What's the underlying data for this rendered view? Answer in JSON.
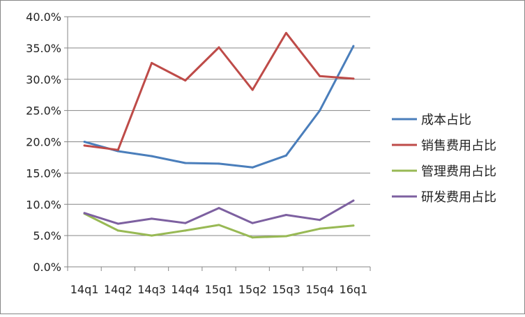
{
  "chart_data": {
    "type": "line",
    "title": "",
    "xlabel": "",
    "ylabel": "",
    "categories": [
      "14q1",
      "14q2",
      "14q3",
      "14q4",
      "15q1",
      "15q2",
      "15q3",
      "15q4",
      "16q1"
    ],
    "ylim": [
      0,
      40
    ],
    "yticks": [
      0,
      5,
      10,
      15,
      20,
      25,
      30,
      35,
      40
    ],
    "ytick_labels": [
      "0.0%",
      "5.0%",
      "10.0%",
      "15.0%",
      "20.0%",
      "25.0%",
      "30.0%",
      "35.0%",
      "40.0%"
    ],
    "grid": true,
    "legend_position": "right",
    "series": [
      {
        "name": "成本占比",
        "color": "#4a7ebb",
        "values": [
          20.0,
          18.5,
          17.7,
          16.6,
          16.5,
          15.9,
          17.8,
          25.0,
          35.3
        ]
      },
      {
        "name": "销售费用占比",
        "color": "#be4b48",
        "values": [
          19.4,
          18.7,
          32.6,
          29.8,
          35.1,
          28.3,
          37.4,
          30.5,
          30.1
        ]
      },
      {
        "name": "管理费用占比",
        "color": "#98b954",
        "values": [
          8.5,
          5.8,
          5.0,
          5.8,
          6.7,
          4.7,
          4.9,
          6.1,
          6.6
        ]
      },
      {
        "name": "研发费用占比",
        "color": "#7d60a0",
        "values": [
          8.6,
          6.9,
          7.7,
          7.0,
          9.4,
          7.0,
          8.3,
          7.5,
          10.6
        ]
      }
    ]
  }
}
